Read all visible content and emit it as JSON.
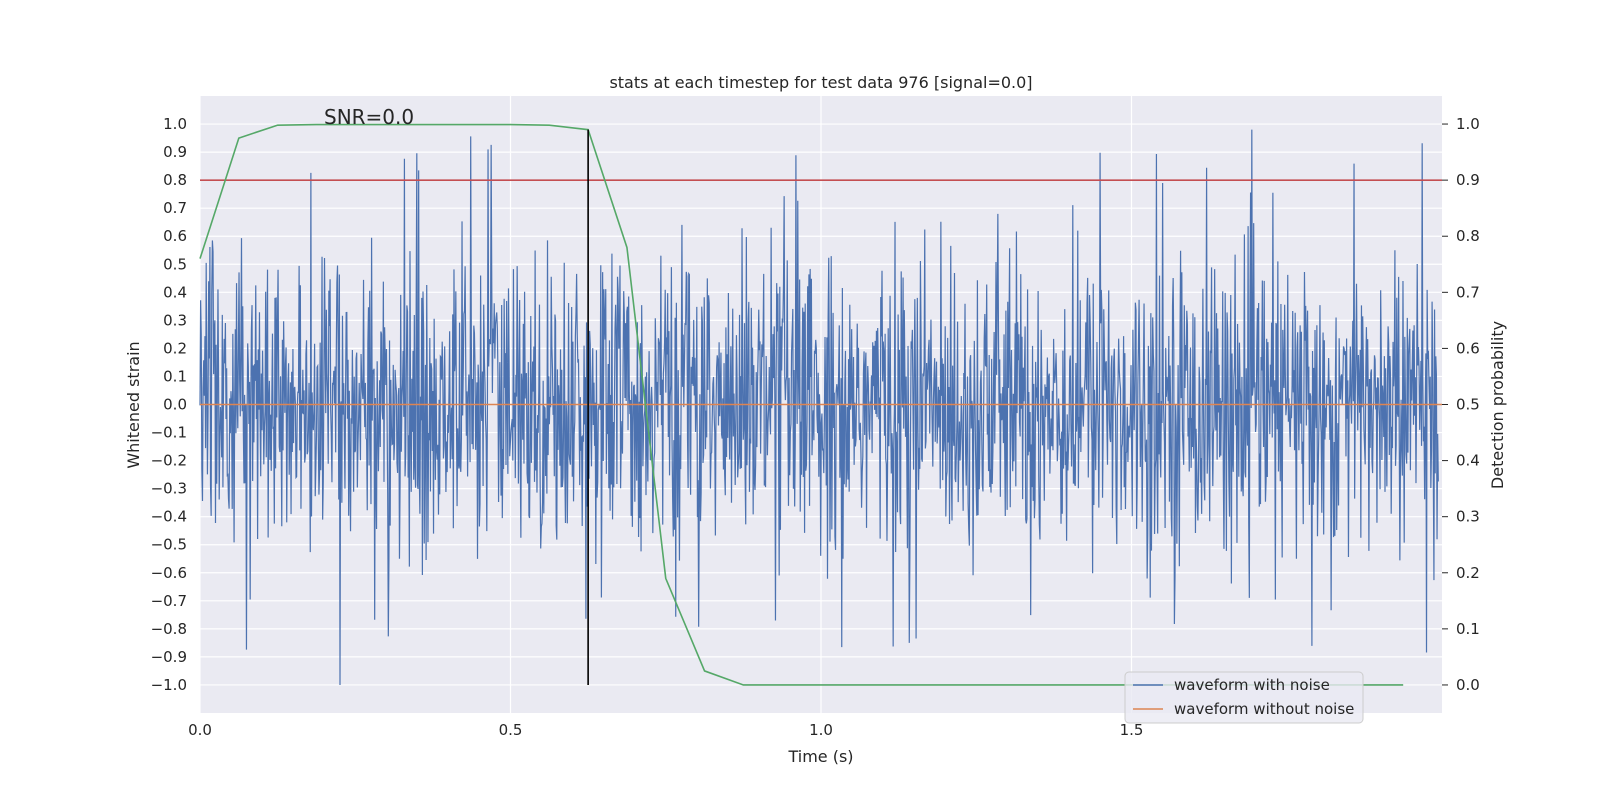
{
  "chart_data": {
    "type": "line",
    "title": "stats at each timestep for test data 976 [signal=0.0]",
    "xlabel": "Time (s)",
    "ylabel": "Whitened strain",
    "y2label": "Detection probability",
    "annotation": "SNR=0.0",
    "xlim": [
      0.0,
      2.0
    ],
    "ylim": [
      -1.1,
      1.1
    ],
    "y2lim": [
      -0.05,
      1.05
    ],
    "x_ticks": [
      "0.0",
      "0.5",
      "1.0",
      "1.5"
    ],
    "y_ticks": [
      "1.0",
      "0.9",
      "0.8",
      "0.7",
      "0.6",
      "0.5",
      "0.4",
      "0.3",
      "0.2",
      "0.1",
      "0.0",
      "−0.1",
      "−0.2",
      "−0.3",
      "−0.4",
      "−0.5",
      "−0.6",
      "−0.7",
      "−0.8",
      "−0.9",
      "−1.0"
    ],
    "y2_ticks": [
      "1.0",
      "0.9",
      "0.8",
      "0.7",
      "0.6",
      "0.5",
      "0.4",
      "0.3",
      "0.2",
      "0.1",
      "0.0"
    ],
    "grid": true,
    "legend_position": "lower-right",
    "series": [
      {
        "name": "waveform with noise",
        "color": "#4c72b0",
        "axis": "left",
        "description_values": "dense noise trace spanning roughly -1.0 to 1.0 from t=0 to t=2.0"
      },
      {
        "name": "waveform without noise",
        "color": "#dd8452",
        "axis": "left",
        "x": [
          0.0,
          2.0
        ],
        "values": [
          0.0,
          0.0
        ]
      },
      {
        "color": "#55a868",
        "axis": "right",
        "x": [
          0.0,
          0.0625,
          0.125,
          0.1875,
          0.25,
          0.3125,
          0.375,
          0.4375,
          0.5,
          0.5625,
          0.625,
          0.6875,
          0.75,
          0.8125,
          0.875,
          0.9375,
          1.0,
          1.0625,
          1.125,
          1.1875,
          1.25,
          1.3125,
          1.375,
          1.4375,
          1.5,
          1.5625,
          1.625,
          1.6875,
          1.75,
          1.8125,
          1.875,
          1.9375
        ],
        "values": [
          0.76,
          0.975,
          0.998,
          0.999,
          0.999,
          0.999,
          0.999,
          0.999,
          0.999,
          0.998,
          0.99,
          0.78,
          0.19,
          0.025,
          0.0,
          0.0,
          0.0,
          0.0,
          0.0,
          0.0,
          0.0,
          0.0,
          0.0,
          0.0,
          0.0,
          0.0,
          0.0,
          0.0,
          0.0,
          0.0,
          0.0,
          0.0
        ]
      },
      {
        "color": "#c44e52",
        "axis": "right",
        "x": [
          0.0,
          2.0
        ],
        "values": [
          0.9,
          0.9
        ]
      },
      {
        "color": "#000000",
        "axis": "left",
        "x": [
          0.625,
          0.625
        ],
        "values": [
          -1.0,
          0.98
        ]
      }
    ]
  }
}
